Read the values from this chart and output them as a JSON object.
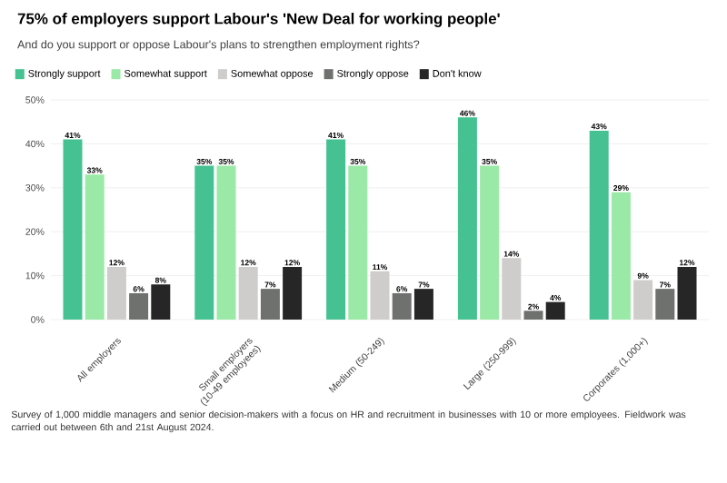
{
  "chart_data": {
    "type": "bar",
    "title": "75% of employers support Labour's 'New Deal for working people'",
    "subtitle": "And do you support or oppose Labour's plans to strengthen employment rights?",
    "categories": [
      "All employers",
      "Small employers (10-49 employees)",
      "Medium (50-249)",
      "Large (250-999)",
      "Corporates (1,000+)"
    ],
    "series": [
      {
        "name": "Strongly support",
        "color": "#46c192",
        "values": [
          41,
          35,
          41,
          46,
          43
        ],
        "value_labels": [
          "41%",
          "35%",
          "41%",
          "46%",
          "43%"
        ]
      },
      {
        "name": "Somewhat support",
        "color": "#9be9a6",
        "values": [
          33,
          35,
          35,
          35,
          29
        ],
        "value_labels": [
          "33%",
          "35%",
          "35%",
          "35%",
          "29%"
        ]
      },
      {
        "name": "Somewhat oppose",
        "color": "#cfcdcb",
        "values": [
          12,
          12,
          11,
          14,
          9
        ],
        "value_labels": [
          "12%",
          "12%",
          "11%",
          "14%",
          "9%"
        ]
      },
      {
        "name": "Strongly oppose",
        "color": "#6f716f",
        "values": [
          6,
          7,
          6,
          2,
          7
        ],
        "value_labels": [
          "6%",
          "7%",
          "6%",
          "2%",
          "7%"
        ]
      },
      {
        "name": "Don't know",
        "color": "#262626",
        "values": [
          8,
          12,
          7,
          4,
          12
        ],
        "value_labels": [
          "8%",
          "12%",
          "7%",
          "4%",
          "12%"
        ]
      }
    ],
    "ylim": [
      0,
      50
    ],
    "yticks": [
      {
        "value": 0,
        "label": "0%"
      },
      {
        "value": 10,
        "label": "10%"
      },
      {
        "value": 20,
        "label": "20%"
      },
      {
        "value": 30,
        "label": "30%"
      },
      {
        "value": 40,
        "label": "40%"
      },
      {
        "value": 50,
        "label": "50%"
      }
    ],
    "grid": "y",
    "legend": "top left",
    "annotations": [
      "Survey of 1,000 middle managers and senior decision-makers with a focus on HR and recruitment in businesses with 10 or more employees. Fieldwork was carried out between 6th and 21st August 2024."
    ]
  }
}
